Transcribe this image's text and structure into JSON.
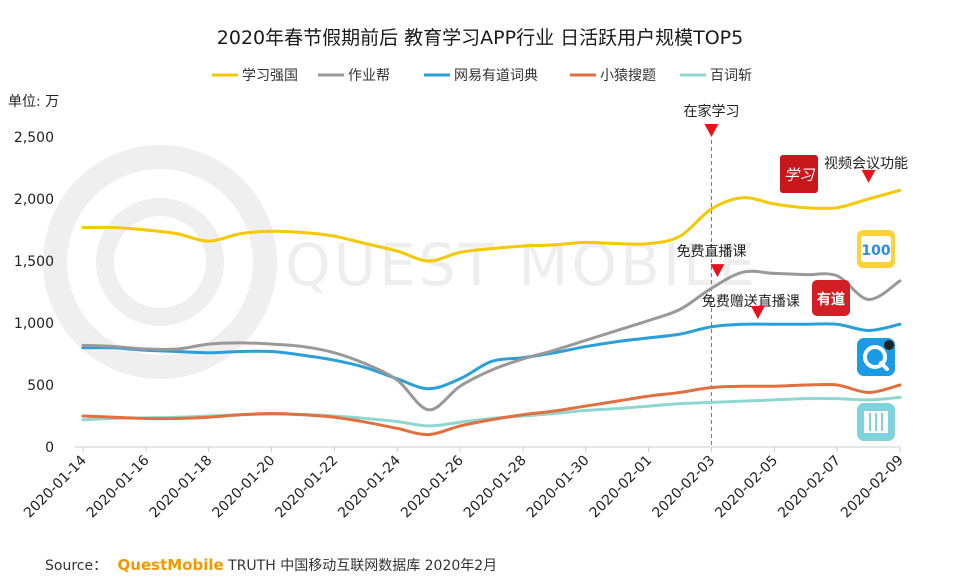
{
  "chart_data": {
    "type": "line",
    "title": "2020年春节假期前后 教育学习APP行业 日活跃用户规模TOP5",
    "unit_label": "单位: 万",
    "ylim": [
      0,
      2500
    ],
    "y_ticks": [
      "0",
      "500",
      "1,000",
      "1,500",
      "2,000",
      "2,500"
    ],
    "y_tick_values": [
      0,
      500,
      1000,
      1500,
      2000,
      2500
    ],
    "x": [
      "2020-01-14",
      "2020-01-15",
      "2020-01-16",
      "2020-01-17",
      "2020-01-18",
      "2020-01-19",
      "2020-01-20",
      "2020-01-21",
      "2020-01-22",
      "2020-01-23",
      "2020-01-24",
      "2020-01-25",
      "2020-01-26",
      "2020-01-27",
      "2020-01-28",
      "2020-01-29",
      "2020-01-30",
      "2020-01-31",
      "2020-02-01",
      "2020-02-02",
      "2020-02-03",
      "2020-02-04",
      "2020-02-05",
      "2020-02-06",
      "2020-02-07",
      "2020-02-08",
      "2020-02-09"
    ],
    "x_ticks": [
      "2020-01-14",
      "2020-01-16",
      "2020-01-18",
      "2020-01-20",
      "2020-01-22",
      "2020-01-24",
      "2020-01-26",
      "2020-01-28",
      "2020-01-30",
      "2020-02-01",
      "2020-02-03",
      "2020-02-05",
      "2020-02-07",
      "2020-02-09"
    ],
    "grid": false,
    "legend_position": "top",
    "series": [
      {
        "name": "学习强国",
        "color": "#f5c800",
        "icon": "xuexiqiangguo-app-icon",
        "values": [
          1770,
          1770,
          1750,
          1720,
          1660,
          1720,
          1740,
          1730,
          1700,
          1640,
          1580,
          1500,
          1570,
          1600,
          1620,
          1630,
          1650,
          1640,
          1640,
          1700,
          1920,
          2010,
          1960,
          1930,
          1930,
          2000,
          2070
        ]
      },
      {
        "name": "作业帮",
        "color": "#999999",
        "icon": "zuoyebang-app-icon",
        "values": [
          820,
          810,
          790,
          790,
          830,
          840,
          830,
          810,
          760,
          670,
          540,
          300,
          490,
          620,
          710,
          780,
          860,
          940,
          1020,
          1110,
          1280,
          1410,
          1400,
          1390,
          1380,
          1190,
          1340
        ]
      },
      {
        "name": "网易有道词典",
        "color": "#2a9fd8",
        "icon": "youdao-dictionary-app-icon",
        "values": [
          800,
          800,
          780,
          770,
          760,
          770,
          770,
          740,
          700,
          640,
          550,
          470,
          550,
          690,
          720,
          760,
          810,
          850,
          880,
          910,
          970,
          990,
          990,
          990,
          990,
          940,
          990
        ]
      },
      {
        "name": "小猿搜题",
        "color": "#e0703f",
        "icon": "xiaoyuan-soti-app-icon",
        "values": [
          250,
          240,
          230,
          230,
          240,
          260,
          270,
          260,
          240,
          200,
          150,
          100,
          170,
          220,
          260,
          290,
          330,
          370,
          410,
          440,
          480,
          490,
          490,
          500,
          500,
          440,
          500
        ]
      },
      {
        "name": "百词斩",
        "color": "#8fd8d2",
        "icon": "baicizhan-app-icon",
        "values": [
          220,
          230,
          235,
          240,
          250,
          260,
          265,
          262,
          250,
          230,
          205,
          170,
          200,
          230,
          250,
          270,
          295,
          310,
          330,
          350,
          360,
          370,
          380,
          390,
          390,
          380,
          400
        ]
      }
    ],
    "annotations": {
      "home_study": {
        "label": "在家学习",
        "x": "2020-02-03"
      },
      "video_meeting": {
        "label": "视频会议功能",
        "x": "2020-02-08",
        "value": 2130
      },
      "free_live": {
        "label": "免费直播课",
        "x": "2020-02-03",
        "value": 1370
      },
      "free_gift_live": {
        "label": "免费赠送直播课",
        "x": "2020-02-04",
        "value": 1000
      }
    }
  },
  "watermark": "QUEST MOBILE",
  "source": {
    "prefix": "Source：",
    "brand": "QuestMobile",
    "rest": "TRUTH 中国移动互联网数据库 2020年2月"
  },
  "app_icons": {
    "xuexi": {
      "text": "学习",
      "color": "#c8171d"
    },
    "zuoye": {
      "text": "100",
      "color": "#2a8fe0"
    },
    "youdao": {
      "text": "有道",
      "color": "#d21f26"
    },
    "xiaoyuan": {
      "color": "#1a9be6"
    },
    "baicizhan": {
      "color": "#7fd3dc"
    }
  }
}
